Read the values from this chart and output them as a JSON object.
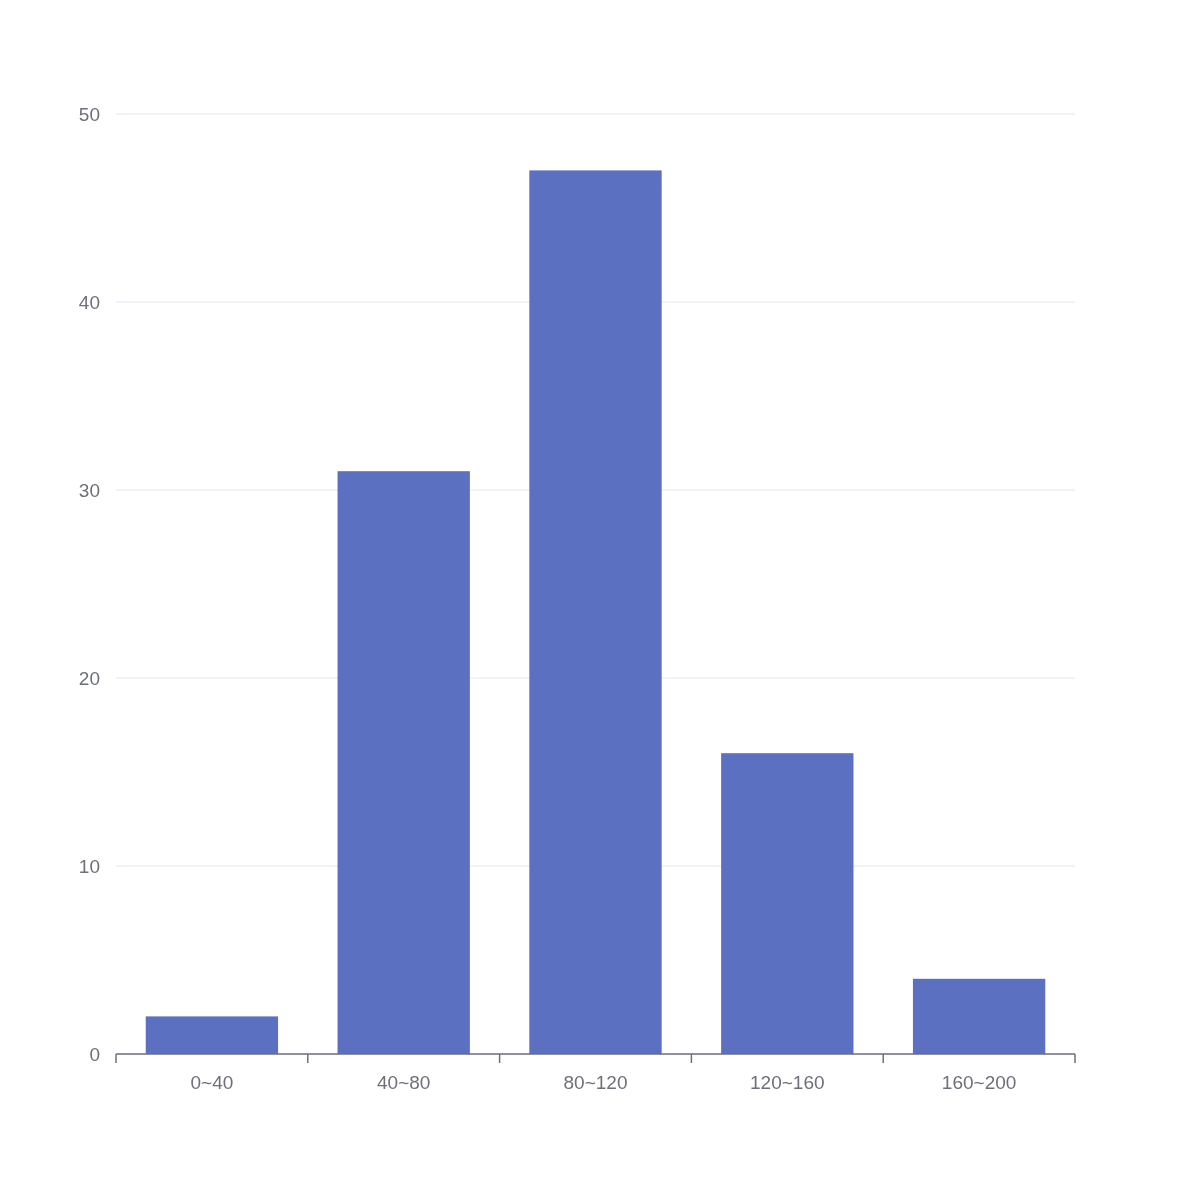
{
  "chart_data": {
    "type": "bar",
    "categories": [
      "0~40",
      "40~80",
      "80~120",
      "120~160",
      "160~200"
    ],
    "values": [
      2,
      31,
      47,
      16,
      4
    ],
    "color": "#5b70c0",
    "ylim": [
      0,
      50
    ],
    "yticks": [
      0,
      10,
      20,
      30,
      40,
      50
    ],
    "grid": "y"
  }
}
